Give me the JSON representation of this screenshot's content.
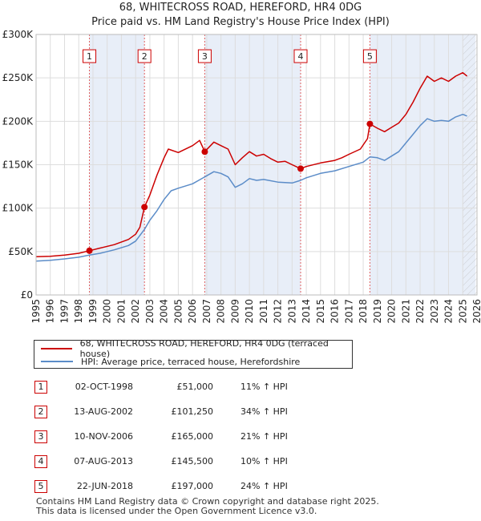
{
  "title_line1": "68, WHITECROSS ROAD, HEREFORD, HR4 0DG",
  "title_line2": "Price paid vs. HM Land Registry's House Price Index (HPI)",
  "chart_data": {
    "type": "line",
    "xlim": [
      1995,
      2026
    ],
    "ylim": [
      0,
      300000
    ],
    "y_ticks": [
      0,
      50000,
      100000,
      150000,
      200000,
      250000,
      300000
    ],
    "y_tick_labels": [
      "£0",
      "£50K",
      "£100K",
      "£150K",
      "£200K",
      "£250K",
      "£300K"
    ],
    "x_ticks": [
      1995,
      1996,
      1997,
      1998,
      1999,
      2000,
      2001,
      2002,
      2003,
      2004,
      2005,
      2006,
      2007,
      2008,
      2009,
      2010,
      2011,
      2012,
      2013,
      2014,
      2015,
      2016,
      2017,
      2018,
      2019,
      2020,
      2021,
      2022,
      2023,
      2024,
      2025,
      2026
    ],
    "grid": true,
    "shaded_ranges": [
      [
        1998.75,
        2002.62
      ],
      [
        2006.86,
        2013.6
      ],
      [
        2018.47,
        2025.9
      ]
    ],
    "future_hatch_from": 2025.0,
    "series": [
      {
        "name": "68, WHITECROSS ROAD, HEREFORD, HR4 0DG (terraced house)",
        "color": "#cc0000",
        "points": [
          [
            1995.0,
            44000
          ],
          [
            1996.0,
            44500
          ],
          [
            1997.0,
            46000
          ],
          [
            1998.0,
            48000
          ],
          [
            1998.75,
            51000
          ],
          [
            1999.5,
            54000
          ],
          [
            2000.5,
            58000
          ],
          [
            2001.5,
            64000
          ],
          [
            2002.0,
            70000
          ],
          [
            2002.3,
            78000
          ],
          [
            2002.62,
            101250
          ],
          [
            2003.0,
            115000
          ],
          [
            2003.5,
            138000
          ],
          [
            2004.0,
            158000
          ],
          [
            2004.3,
            168000
          ],
          [
            2005.0,
            164000
          ],
          [
            2006.0,
            172000
          ],
          [
            2006.5,
            178000
          ],
          [
            2006.86,
            165000
          ],
          [
            2007.5,
            176000
          ],
          [
            2008.0,
            172000
          ],
          [
            2008.5,
            168000
          ],
          [
            2009.0,
            150000
          ],
          [
            2009.5,
            158000
          ],
          [
            2010.0,
            165000
          ],
          [
            2010.5,
            160000
          ],
          [
            2011.0,
            162000
          ],
          [
            2011.5,
            157000
          ],
          [
            2012.0,
            153000
          ],
          [
            2012.5,
            154000
          ],
          [
            2013.0,
            150000
          ],
          [
            2013.6,
            145500
          ],
          [
            2014.0,
            148000
          ],
          [
            2015.0,
            152000
          ],
          [
            2016.0,
            155000
          ],
          [
            2016.5,
            158000
          ],
          [
            2017.0,
            162000
          ],
          [
            2017.8,
            168000
          ],
          [
            2018.3,
            180000
          ],
          [
            2018.47,
            197000
          ],
          [
            2019.0,
            192000
          ],
          [
            2019.5,
            188000
          ],
          [
            2020.0,
            193000
          ],
          [
            2020.5,
            198000
          ],
          [
            2021.0,
            208000
          ],
          [
            2021.5,
            222000
          ],
          [
            2022.0,
            238000
          ],
          [
            2022.5,
            252000
          ],
          [
            2023.0,
            246000
          ],
          [
            2023.5,
            250000
          ],
          [
            2024.0,
            246000
          ],
          [
            2024.5,
            252000
          ],
          [
            2025.0,
            256000
          ],
          [
            2025.3,
            252000
          ]
        ]
      },
      {
        "name": "HPI: Average price, terraced house, Herefordshire",
        "color": "#5b8cc8",
        "points": [
          [
            1995.0,
            39000
          ],
          [
            1996.0,
            40000
          ],
          [
            1997.0,
            41500
          ],
          [
            1998.0,
            43500
          ],
          [
            1998.75,
            46000
          ],
          [
            1999.5,
            48000
          ],
          [
            2000.5,
            52000
          ],
          [
            2001.5,
            57000
          ],
          [
            2002.0,
            62000
          ],
          [
            2002.62,
            75500
          ],
          [
            2003.0,
            86000
          ],
          [
            2003.5,
            97000
          ],
          [
            2004.0,
            110000
          ],
          [
            2004.5,
            120000
          ],
          [
            2005.0,
            123000
          ],
          [
            2006.0,
            128000
          ],
          [
            2006.86,
            136000
          ],
          [
            2007.5,
            142000
          ],
          [
            2008.0,
            140000
          ],
          [
            2008.5,
            136000
          ],
          [
            2009.0,
            124000
          ],
          [
            2009.5,
            128000
          ],
          [
            2010.0,
            134000
          ],
          [
            2010.5,
            132000
          ],
          [
            2011.0,
            133000
          ],
          [
            2012.0,
            130000
          ],
          [
            2013.0,
            129000
          ],
          [
            2013.6,
            132000
          ],
          [
            2014.0,
            135000
          ],
          [
            2015.0,
            140000
          ],
          [
            2016.0,
            143000
          ],
          [
            2017.0,
            148000
          ],
          [
            2018.0,
            153000
          ],
          [
            2018.47,
            159000
          ],
          [
            2019.0,
            158000
          ],
          [
            2019.5,
            155000
          ],
          [
            2020.0,
            160000
          ],
          [
            2020.5,
            165000
          ],
          [
            2021.0,
            175000
          ],
          [
            2021.5,
            185000
          ],
          [
            2022.0,
            195000
          ],
          [
            2022.5,
            203000
          ],
          [
            2023.0,
            200000
          ],
          [
            2023.5,
            201000
          ],
          [
            2024.0,
            200000
          ],
          [
            2024.5,
            205000
          ],
          [
            2025.0,
            208000
          ],
          [
            2025.3,
            206000
          ]
        ]
      }
    ],
    "sales": [
      {
        "label": "1",
        "x": 1998.75,
        "price": 51000
      },
      {
        "label": "2",
        "x": 2002.62,
        "price": 101250
      },
      {
        "label": "3",
        "x": 2006.86,
        "price": 165000
      },
      {
        "label": "4",
        "x": 2013.6,
        "price": 145500
      },
      {
        "label": "5",
        "x": 2018.47,
        "price": 197000
      }
    ],
    "marker_label_value": 275000
  },
  "legend": {
    "red_label": "68, WHITECROSS ROAD, HEREFORD, HR4 0DG (terraced house)",
    "blue_label": "HPI: Average price, terraced house, Herefordshire"
  },
  "sales_table": [
    {
      "num": "1",
      "date": "02-OCT-1998",
      "price": "£51,000",
      "hpi": "11% ↑ HPI"
    },
    {
      "num": "2",
      "date": "13-AUG-2002",
      "price": "£101,250",
      "hpi": "34% ↑ HPI"
    },
    {
      "num": "3",
      "date": "10-NOV-2006",
      "price": "£165,000",
      "hpi": "21% ↑ HPI"
    },
    {
      "num": "4",
      "date": "07-AUG-2013",
      "price": "£145,500",
      "hpi": "10% ↑ HPI"
    },
    {
      "num": "5",
      "date": "22-JUN-2018",
      "price": "£197,000",
      "hpi": "24% ↑ HPI"
    }
  ],
  "footer_line1": "Contains HM Land Registry data © Crown copyright and database right 2025.",
  "footer_line2": "This data is licensed under the Open Government Licence v3.0."
}
